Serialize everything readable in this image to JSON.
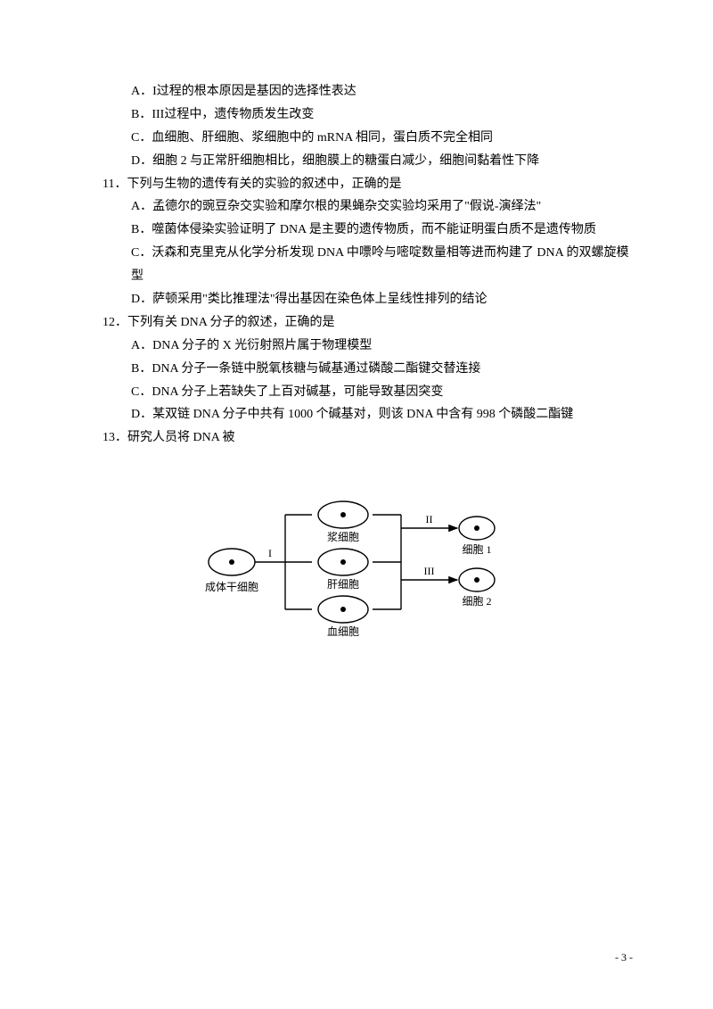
{
  "q10": {
    "A": "A．I过程的根本原因是基因的选择性表达",
    "B": "B．III过程中，遗传物质发生改变",
    "C": "C．血细胞、肝细胞、浆细胞中的 mRNA 相同，蛋白质不完全相同",
    "D": "D．细胞 2 与正常肝细胞相比，细胞膜上的糖蛋白减少，细胞间黏着性下降"
  },
  "q11": {
    "stem": "11．下列与生物的遗传有关的实验的叙述中，正确的是",
    "A": "A．孟德尔的豌豆杂交实验和摩尔根的果蝇杂交实验均采用了\"假说-演绎法\"",
    "B": "B．噬菌体侵染实验证明了 DNA 是主要的遗传物质，而不能证明蛋白质不是遗传物质",
    "C": "C．沃森和克里克从化学分析发现 DNA 中嘌呤与嘧啶数量相等进而构建了 DNA 的双螺旋模型",
    "D": "D．萨顿采用\"类比推理法\"得出基因在染色体上呈线性排列的结论"
  },
  "q12": {
    "stem": "12．下列有关 DNA 分子的叙述，正确的是",
    "A": "A．DNA 分子的 X 光衍射照片属于物理模型",
    "B": "B．DNA 分子一条链中脱氧核糖与碱基通过磷酸二酯键交替连接",
    "C": "C．DNA 分子上若缺失了上百对碱基，可能导致基因突变",
    "D": "D．某双链 DNA 分子中共有 1000 个碱基对，则该 DNA 中含有 998 个磷酸二酯键"
  },
  "q13": {
    "stem": "13．研究人员将 DNA 被"
  },
  "diagram": {
    "labels": {
      "left_cell": "成体干细胞",
      "upper": "浆细胞",
      "middle": "肝细胞",
      "lower": "血细胞",
      "right1": "细胞 1",
      "right2": "细胞 2",
      "arrow_I": "I",
      "arrow_II": "II",
      "arrow_III": "III"
    },
    "style": {
      "stroke": "#000000",
      "fill": "#ffffff",
      "stroke_width": 1.4,
      "font_size_label": 12,
      "font_size_roman": 12
    }
  },
  "page_number": "- 3 -"
}
